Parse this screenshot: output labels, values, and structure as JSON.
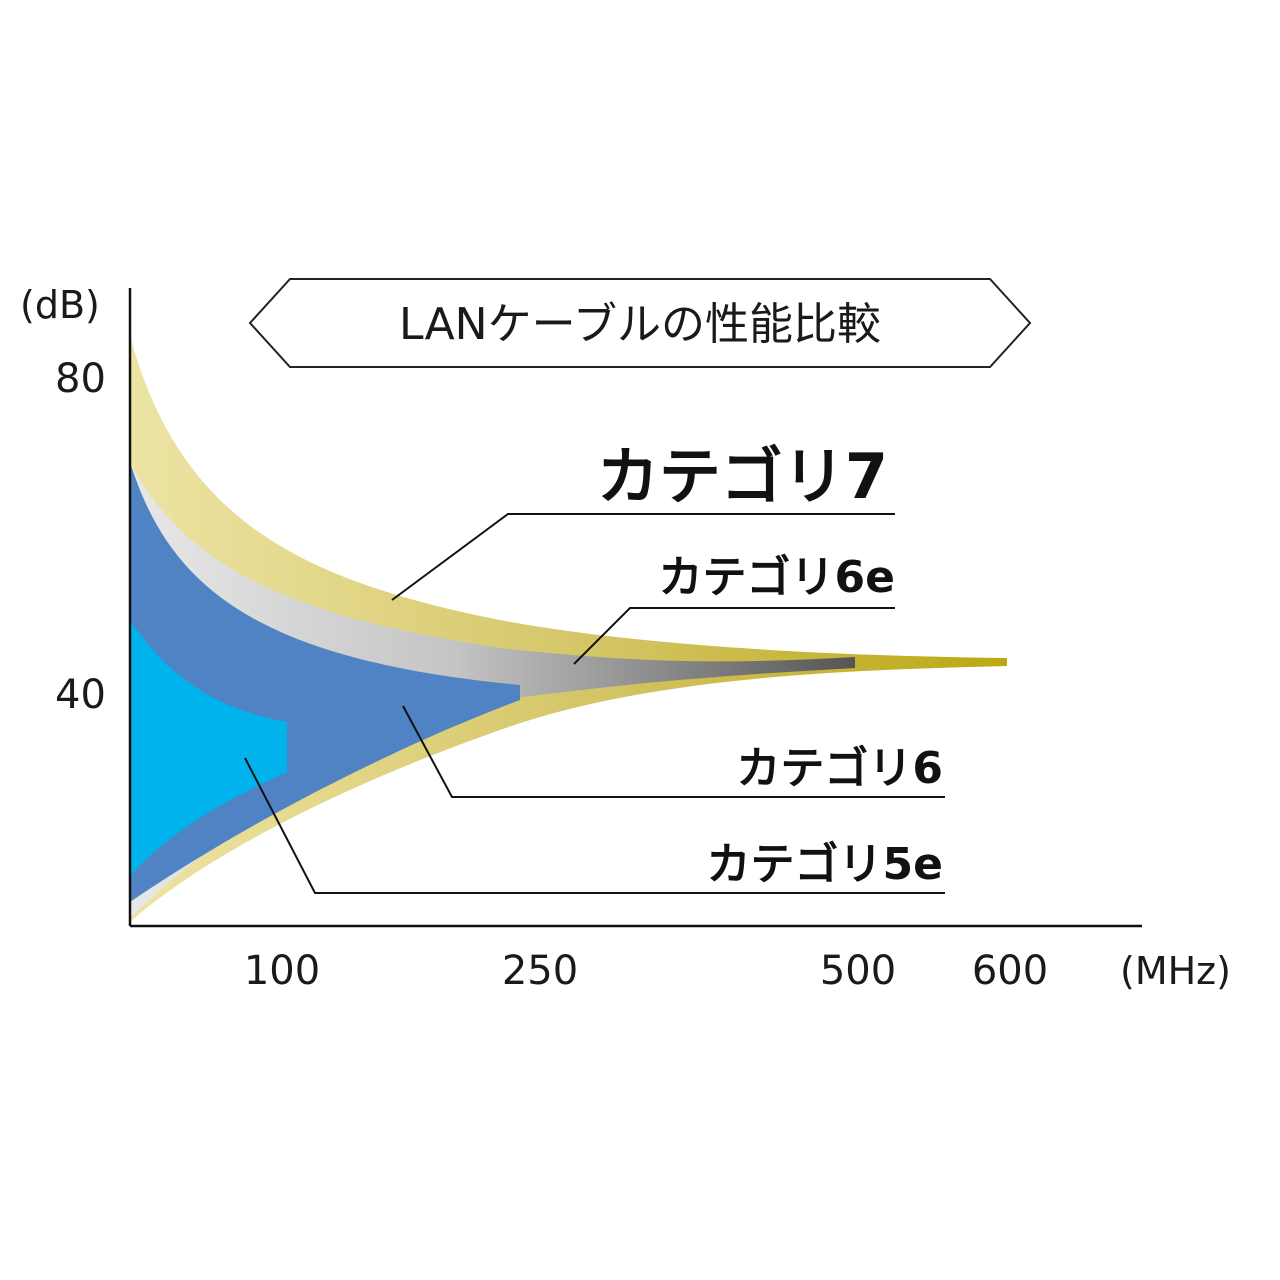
{
  "chart_data": {
    "type": "area",
    "title": "LANケーブルの性能比較",
    "ylabel": "(dB)",
    "xlabel": "(MHz)",
    "x_ticks": [
      {
        "label": "100",
        "value": 100
      },
      {
        "label": "250",
        "value": 250
      },
      {
        "label": "500",
        "value": 500
      },
      {
        "label": "600",
        "value": 600
      }
    ],
    "y_ticks": [
      {
        "label": "80",
        "value": 80
      },
      {
        "label": "40",
        "value": 40
      }
    ],
    "series": [
      {
        "name": "カテゴリ7",
        "max_frequency": 600,
        "color": "#d6c873"
      },
      {
        "name": "カテゴリ6e",
        "max_frequency": 500,
        "color": "#bdbdbd"
      },
      {
        "name": "カテゴリ6",
        "max_frequency": 250,
        "color": "#4f83c4"
      },
      {
        "name": "カテゴリ5e",
        "max_frequency": 100,
        "color": "#00b3ec"
      }
    ],
    "grid": false,
    "legend": "callout labels right"
  }
}
